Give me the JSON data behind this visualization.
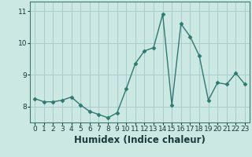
{
  "title": "",
  "xlabel": "Humidex (Indice chaleur)",
  "x": [
    0,
    1,
    2,
    3,
    4,
    5,
    6,
    7,
    8,
    9,
    10,
    11,
    12,
    13,
    14,
    15,
    16,
    17,
    18,
    19,
    20,
    21,
    22,
    23
  ],
  "y": [
    8.25,
    8.15,
    8.15,
    8.2,
    8.3,
    8.05,
    7.85,
    7.75,
    7.65,
    7.8,
    8.55,
    9.35,
    9.75,
    9.85,
    10.9,
    8.05,
    10.6,
    10.2,
    9.6,
    8.2,
    8.75,
    8.7,
    9.05,
    8.7
  ],
  "line_color": "#2d7a6e",
  "marker": "D",
  "marker_size": 2.5,
  "bg_color": "#cce8e3",
  "grid_color": "#aacccc",
  "xlim": [
    -0.5,
    23.5
  ],
  "ylim": [
    7.5,
    11.3
  ],
  "yticks": [
    8,
    9,
    10,
    11
  ],
  "xticks": [
    0,
    1,
    2,
    3,
    4,
    5,
    6,
    7,
    8,
    9,
    10,
    11,
    12,
    13,
    14,
    15,
    16,
    17,
    18,
    19,
    20,
    21,
    22,
    23
  ],
  "tick_fontsize": 6.5,
  "xlabel_fontsize": 8.5,
  "line_width": 1.0
}
